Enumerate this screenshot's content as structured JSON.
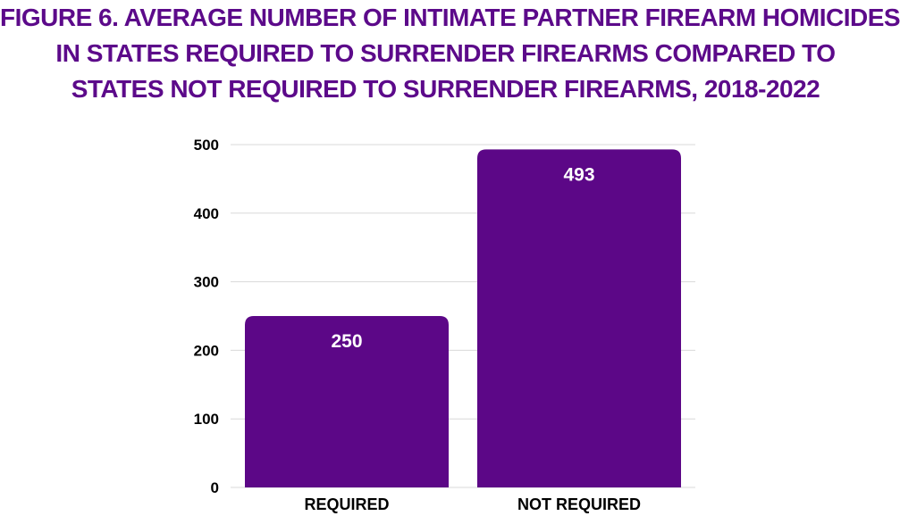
{
  "colors": {
    "title": "#5c0a8a",
    "bar": "#5c0787",
    "grid": "#d9d9d9",
    "axis_text": "#000000",
    "bar_label": "#ffffff"
  },
  "chart_data": {
    "type": "bar",
    "title_lines": [
      "FIGURE 6. AVERAGE NUMBER OF INTIMATE PARTNER FIREARM HOMICIDES",
      "IN STATES REQUIRED TO SURRENDER FIREARMS COMPARED TO",
      "STATES NOT REQUIRED TO SURRENDER FIREARMS, 2018-2022"
    ],
    "categories": [
      "REQUIRED",
      "NOT REQUIRED"
    ],
    "values": [
      250,
      493
    ],
    "data_labels": [
      "250",
      "493"
    ],
    "ylim": [
      0,
      500
    ],
    "yticks": [
      "0",
      "100",
      "200",
      "300",
      "400",
      "500"
    ],
    "grid": true,
    "legend": "none"
  }
}
